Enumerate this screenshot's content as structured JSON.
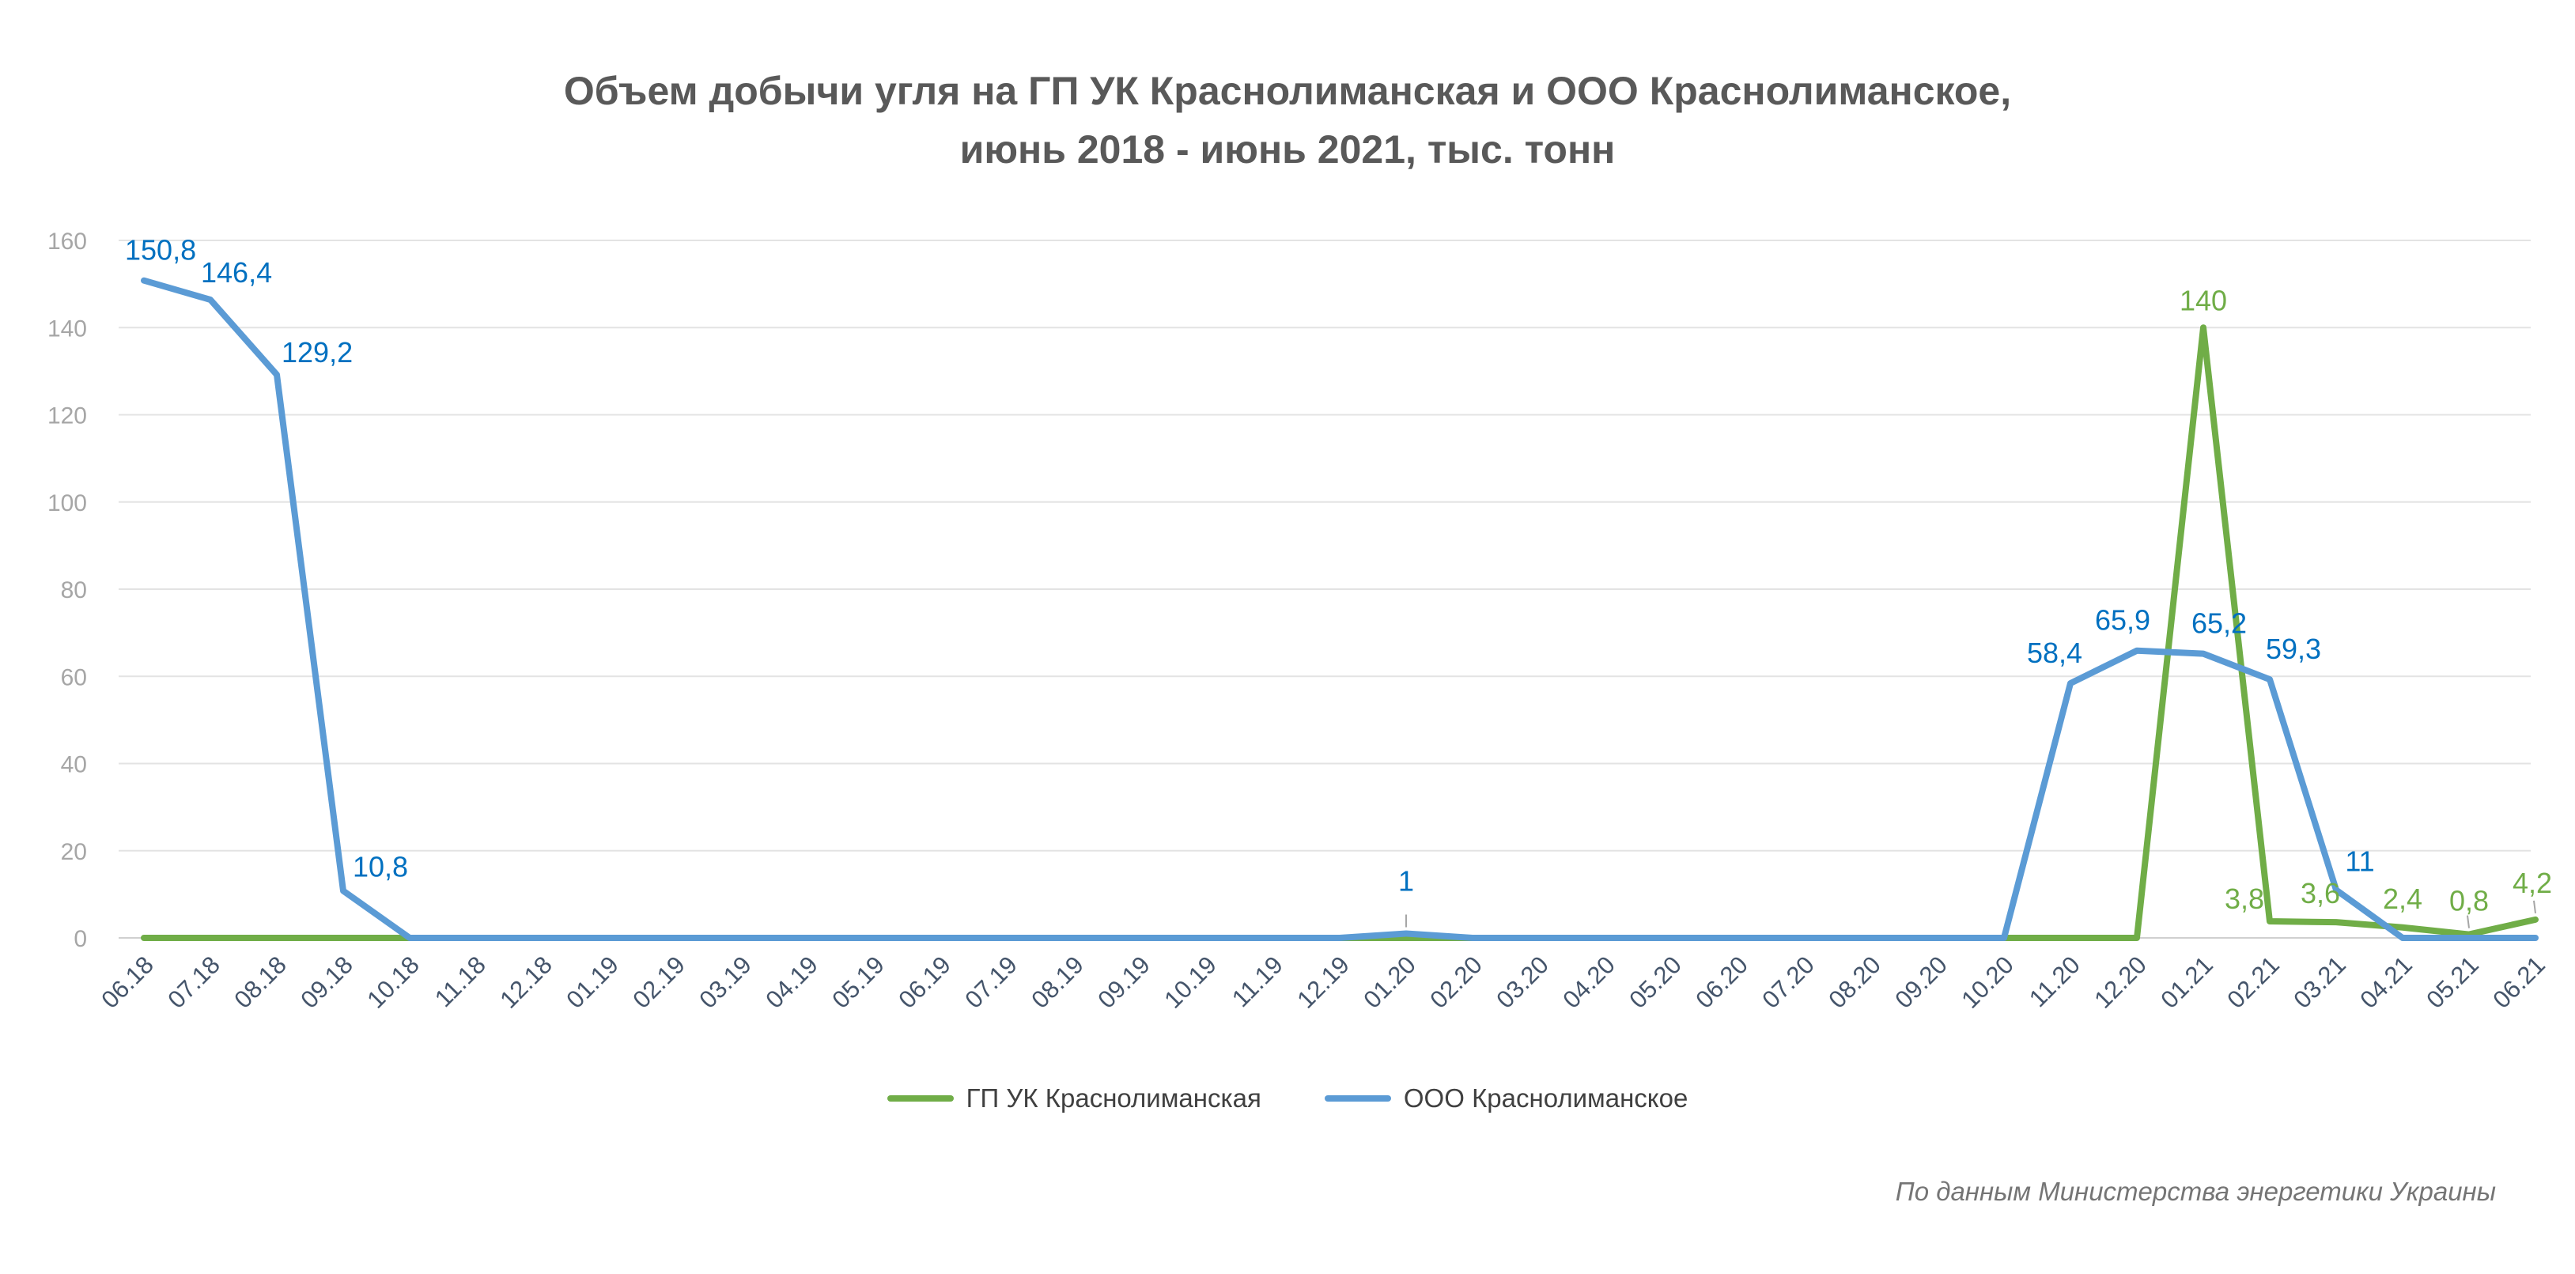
{
  "colors": {
    "green": "#70ad47",
    "blue": "#5b9bd5",
    "blue_label": "#0070c0",
    "green_label": "#70ad47"
  },
  "chart_data": {
    "type": "line",
    "title_line1": "Объем добычи угля на ГП УК Краснолиманская и ООО Краснолиманское,",
    "title_line2": "июнь 2018 - июнь 2021, тыс. тонн",
    "xlabel": "",
    "ylabel": "",
    "ylim": [
      0,
      160
    ],
    "yticks": [
      "0",
      "20",
      "40",
      "60",
      "80",
      "100",
      "120",
      "140",
      "160"
    ],
    "grid": true,
    "legend_position": "bottom",
    "categories": [
      "06.18",
      "07.18",
      "08.18",
      "09.18",
      "10.18",
      "11.18",
      "12.18",
      "01.19",
      "02.19",
      "03.19",
      "04.19",
      "05.19",
      "06.19",
      "07.19",
      "08.19",
      "09.19",
      "10.19",
      "11.19",
      "12.19",
      "01.20",
      "02.20",
      "03.20",
      "04.20",
      "05.20",
      "06.20",
      "07.20",
      "08.20",
      "09.20",
      "10.20",
      "11.20",
      "12.20",
      "01.21",
      "02.21",
      "03.21",
      "04.21",
      "05.21",
      "06.21"
    ],
    "series": [
      {
        "name": "ГП УК Краснолиманская",
        "color": "#70ad47",
        "values": [
          0,
          0,
          0,
          0,
          0,
          0,
          0,
          0,
          0,
          0,
          0,
          0,
          0,
          0,
          0,
          0,
          0,
          0,
          0,
          0,
          0,
          0,
          0,
          0,
          0,
          0,
          0,
          0,
          0,
          0,
          0,
          140,
          3.8,
          3.6,
          2.4,
          0.8,
          4.2
        ],
        "labels": [
          {
            "index": 31,
            "text": "140"
          },
          {
            "index": 32,
            "text": "3,8"
          },
          {
            "index": 33,
            "text": "3,6"
          },
          {
            "index": 34,
            "text": "2,4"
          },
          {
            "index": 35,
            "text": "0,8"
          },
          {
            "index": 36,
            "text": "4,2"
          }
        ]
      },
      {
        "name": "ООО Краснолиманское",
        "color": "#5b9bd5",
        "values": [
          150.8,
          146.4,
          129.2,
          10.8,
          0,
          0,
          0,
          0,
          0,
          0,
          0,
          0,
          0,
          0,
          0,
          0,
          0,
          0,
          0,
          1,
          0,
          0,
          0,
          0,
          0,
          0,
          0,
          0,
          0,
          58.4,
          65.9,
          65.2,
          59.3,
          11,
          0,
          0,
          0
        ],
        "labels": [
          {
            "index": 0,
            "text": "150,8"
          },
          {
            "index": 1,
            "text": "146,4"
          },
          {
            "index": 2,
            "text": "129,2"
          },
          {
            "index": 3,
            "text": "10,8"
          },
          {
            "index": 19,
            "text": "1"
          },
          {
            "index": 29,
            "text": "58,4"
          },
          {
            "index": 30,
            "text": "65,9"
          },
          {
            "index": 31,
            "text": "65,2"
          },
          {
            "index": 32,
            "text": "59,3"
          },
          {
            "index": 33,
            "text": "11"
          }
        ]
      }
    ]
  },
  "legend": [
    {
      "label": "ГП УК Краснолиманская",
      "color": "#70ad47"
    },
    {
      "label": "ООО Краснолиманское",
      "color": "#5b9bd5"
    }
  ],
  "source_note": "По данным Министерства энергетики Украины"
}
